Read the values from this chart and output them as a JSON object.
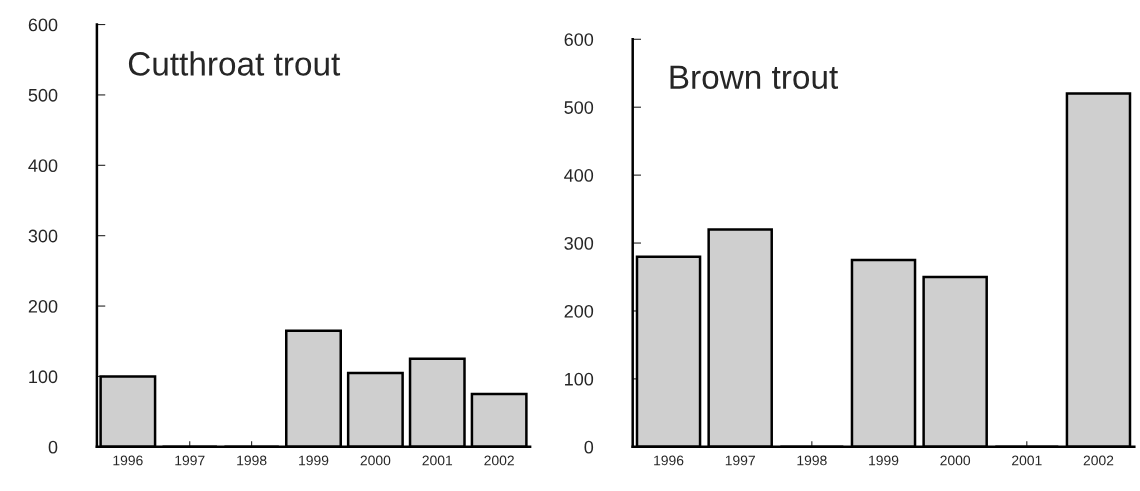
{
  "chart_data": [
    {
      "type": "bar",
      "title": "Cutthroat trout",
      "categories": [
        "1996",
        "1997",
        "1998",
        "1999",
        "2000",
        "2001",
        "2002"
      ],
      "values": [
        100,
        0,
        0,
        165,
        105,
        125,
        75
      ],
      "color": "#cfcfcf",
      "ylim": [
        0,
        600
      ],
      "yticks": [
        0,
        100,
        200,
        300,
        400,
        500,
        600
      ],
      "grid": false
    },
    {
      "type": "bar",
      "title": "Brown trout",
      "categories": [
        "1996",
        "1997",
        "1998",
        "1999",
        "2000",
        "2001",
        "2002"
      ],
      "values": [
        280,
        320,
        0,
        275,
        250,
        0,
        520
      ],
      "color": "#cfcfcf",
      "ylim": [
        0,
        600
      ],
      "yticks": [
        0,
        100,
        200,
        300,
        400,
        500,
        600
      ],
      "grid": false
    }
  ]
}
